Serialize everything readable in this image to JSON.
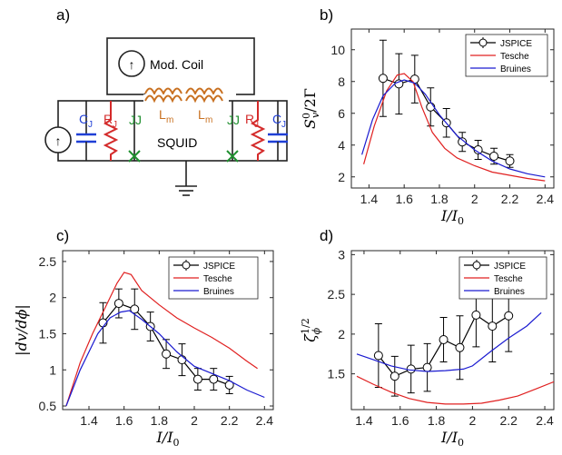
{
  "circuit": {
    "panel_label": "a)",
    "mod_coil": "Mod. Coil",
    "squid": "SQUID",
    "cj_left": "C",
    "cj_left_sub": "J",
    "rj_left": "R",
    "rj_left_sub": "J",
    "jj_left": "JJ",
    "lm_left": "L",
    "lm_left_sub": "m",
    "lm_right": "L",
    "lm_right_sub": "m",
    "jj_right": "JJ",
    "rj_right": "R",
    "rj_right_sub": "J",
    "cj_right": "C",
    "cj_right_sub": "J",
    "source_symbol": "↑",
    "colors": {
      "blue": "#1f3fd6",
      "red": "#d42a2a",
      "green": "#1f8f2f",
      "orange": "#c87020",
      "wire": "#222222"
    }
  },
  "chart_data": [
    {
      "panel": "b)",
      "type": "line",
      "xlabel": "I/I0",
      "ylabel": "S_v^0/2Γ",
      "xlim": [
        1.3,
        2.45
      ],
      "ylim": [
        1.3,
        11.3
      ],
      "xticks": [
        1.4,
        1.6,
        1.8,
        2,
        2.2,
        2.4
      ],
      "yticks": [
        2,
        4,
        6,
        8,
        10
      ],
      "legend_position": "top-right",
      "series": [
        {
          "name": "JSPICE",
          "color": "#000000",
          "markers": true,
          "x": [
            1.48,
            1.57,
            1.66,
            1.75,
            1.84,
            1.93,
            2.02,
            2.11,
            2.2
          ],
          "y": [
            8.2,
            7.85,
            8.15,
            6.4,
            5.4,
            4.2,
            3.7,
            3.3,
            3.0
          ],
          "err": [
            2.4,
            1.9,
            1.5,
            1.2,
            0.9,
            0.6,
            0.6,
            0.5,
            0.4
          ]
        },
        {
          "name": "Tesche",
          "color": "#e02020",
          "markers": false,
          "x": [
            1.37,
            1.43,
            1.5,
            1.56,
            1.6,
            1.65,
            1.7,
            1.76,
            1.83,
            1.9,
            2.0,
            2.1,
            2.2,
            2.3,
            2.4
          ],
          "y": [
            2.8,
            5.2,
            7.4,
            8.4,
            8.5,
            8.0,
            6.4,
            4.8,
            3.8,
            3.2,
            2.7,
            2.3,
            2.1,
            1.9,
            1.75
          ]
        },
        {
          "name": "Bruines",
          "color": "#1a1ad0",
          "markers": false,
          "x": [
            1.36,
            1.42,
            1.48,
            1.55,
            1.6,
            1.66,
            1.72,
            1.8,
            1.9,
            2.0,
            2.1,
            2.2,
            2.3,
            2.4
          ],
          "y": [
            3.4,
            5.6,
            7.1,
            7.9,
            8.1,
            7.9,
            7.2,
            5.9,
            4.6,
            3.7,
            3.0,
            2.5,
            2.2,
            2.0
          ]
        }
      ]
    },
    {
      "panel": "c)",
      "type": "line",
      "xlabel": "I/I0",
      "ylabel": "|dv/dϕ|",
      "xlim": [
        1.25,
        2.45
      ],
      "ylim": [
        0.45,
        2.65
      ],
      "xticks": [
        1.4,
        1.6,
        1.8,
        2,
        2.2,
        2.4
      ],
      "yticks": [
        0.5,
        1,
        1.5,
        2,
        2.5
      ],
      "legend_position": "top-right",
      "series": [
        {
          "name": "JSPICE",
          "color": "#000000",
          "markers": true,
          "x": [
            1.48,
            1.57,
            1.66,
            1.75,
            1.84,
            1.93,
            2.02,
            2.11,
            2.2
          ],
          "y": [
            1.65,
            1.92,
            1.84,
            1.6,
            1.22,
            1.14,
            0.87,
            0.87,
            0.79
          ],
          "err": [
            0.28,
            0.2,
            0.28,
            0.2,
            0.2,
            0.22,
            0.15,
            0.15,
            0.12
          ]
        },
        {
          "name": "Tesche",
          "color": "#e02020",
          "markers": false,
          "x": [
            1.27,
            1.35,
            1.42,
            1.5,
            1.56,
            1.6,
            1.64,
            1.7,
            1.8,
            1.9,
            2.0,
            2.1,
            2.2,
            2.3,
            2.36
          ],
          "y": [
            0.5,
            1.1,
            1.5,
            1.9,
            2.2,
            2.35,
            2.32,
            2.1,
            1.9,
            1.72,
            1.58,
            1.45,
            1.3,
            1.12,
            1.02
          ]
        },
        {
          "name": "Bruines",
          "color": "#1a1ad0",
          "markers": false,
          "x": [
            1.27,
            1.35,
            1.45,
            1.52,
            1.58,
            1.63,
            1.7,
            1.8,
            1.9,
            2.0,
            2.1,
            2.2,
            2.3,
            2.4
          ],
          "y": [
            0.5,
            1.0,
            1.5,
            1.72,
            1.8,
            1.82,
            1.7,
            1.5,
            1.25,
            1.05,
            0.95,
            0.85,
            0.72,
            0.62
          ]
        }
      ]
    },
    {
      "panel": "d)",
      "type": "line",
      "xlabel": "I/I0",
      "ylabel": "ζ_ϕ^(1/2)",
      "xlim": [
        1.33,
        2.45
      ],
      "ylim": [
        1.05,
        3.05
      ],
      "xticks": [
        1.4,
        1.6,
        1.8,
        2,
        2.2,
        2.4
      ],
      "yticks": [
        1.5,
        2,
        2.5,
        3
      ],
      "legend_position": "top-right",
      "series": [
        {
          "name": "JSPICE",
          "color": "#000000",
          "markers": true,
          "x": [
            1.48,
            1.57,
            1.66,
            1.75,
            1.84,
            1.93,
            2.02,
            2.11,
            2.2
          ],
          "y": [
            1.73,
            1.47,
            1.56,
            1.58,
            1.93,
            1.83,
            2.24,
            2.1,
            2.23
          ],
          "err": [
            0.4,
            0.25,
            0.3,
            0.3,
            0.28,
            0.4,
            0.4,
            0.45,
            0.45
          ]
        },
        {
          "name": "Tesche",
          "color": "#e02020",
          "markers": false,
          "x": [
            1.36,
            1.45,
            1.55,
            1.65,
            1.75,
            1.85,
            1.95,
            2.05,
            2.15,
            2.25,
            2.35,
            2.45
          ],
          "y": [
            1.47,
            1.37,
            1.27,
            1.19,
            1.14,
            1.12,
            1.12,
            1.13,
            1.17,
            1.22,
            1.31,
            1.4
          ]
        },
        {
          "name": "Bruines",
          "color": "#1a1ad0",
          "markers": false,
          "x": [
            1.36,
            1.45,
            1.55,
            1.65,
            1.75,
            1.85,
            1.95,
            2.0,
            2.1,
            2.2,
            2.3,
            2.38
          ],
          "y": [
            1.75,
            1.68,
            1.6,
            1.55,
            1.53,
            1.54,
            1.56,
            1.6,
            1.78,
            1.95,
            2.1,
            2.27
          ]
        }
      ]
    }
  ]
}
